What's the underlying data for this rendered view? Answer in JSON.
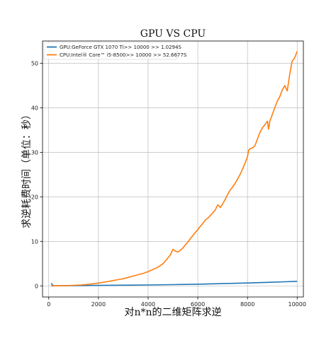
{
  "chart_data": {
    "type": "line",
    "title": "GPU VS CPU",
    "xlabel": "对n*n的二维矩阵求逆",
    "ylabel": "求逆耗费时间（单位：秒）",
    "xlim": [
      -250,
      10250
    ],
    "ylim": [
      -2.5,
      55
    ],
    "xticks": [
      0,
      2000,
      4000,
      6000,
      8000,
      10000
    ],
    "yticks": [
      0,
      10,
      20,
      30,
      40,
      50
    ],
    "grid": true,
    "legend_position": "upper-left",
    "series": [
      {
        "name": "GPU:GeForce GTX 1070 Ti>> 10000 >> 1.0294S",
        "color": "#1f77b4",
        "x": [
          100,
          150,
          200,
          300,
          500,
          1000,
          1500,
          2000,
          3000,
          4000,
          5000,
          6000,
          7000,
          8000,
          9000,
          9500,
          10000
        ],
        "y": [
          0.6,
          0.15,
          0.05,
          0.02,
          0.03,
          0.05,
          0.08,
          0.1,
          0.15,
          0.2,
          0.28,
          0.38,
          0.5,
          0.65,
          0.82,
          0.92,
          1.03
        ]
      },
      {
        "name": "CPU:Intel® Core™ i5-8500>> 10000 >> 52.6677S",
        "color": "#ff7f0e",
        "x": [
          100,
          300,
          500,
          800,
          1000,
          1300,
          1500,
          1700,
          1900,
          2000,
          2200,
          2400,
          2600,
          2800,
          3000,
          3200,
          3400,
          3600,
          3800,
          4000,
          4200,
          4400,
          4500,
          4600,
          4700,
          4800,
          4900,
          5000,
          5100,
          5200,
          5300,
          5400,
          5500,
          5600,
          5700,
          5800,
          5900,
          6000,
          6100,
          6200,
          6300,
          6400,
          6500,
          6600,
          6700,
          6800,
          6850,
          6900,
          7000,
          7100,
          7200,
          7300,
          7400,
          7500,
          7600,
          7700,
          7800,
          7900,
          8000,
          8050,
          8100,
          8200,
          8300,
          8400,
          8500,
          8600,
          8700,
          8800,
          8850,
          8900,
          9000,
          9100,
          9200,
          9300,
          9400,
          9500,
          9600,
          9700,
          9800,
          9900,
          10000
        ],
        "y": [
          0.0,
          0.01,
          0.03,
          0.08,
          0.12,
          0.2,
          0.3,
          0.4,
          0.55,
          0.65,
          0.8,
          1.0,
          1.2,
          1.4,
          1.6,
          1.9,
          2.2,
          2.5,
          2.8,
          3.2,
          3.7,
          4.2,
          4.6,
          5.0,
          5.6,
          6.3,
          7.0,
          8.2,
          7.8,
          7.6,
          8.0,
          8.5,
          9.2,
          9.8,
          10.6,
          11.3,
          12.0,
          12.6,
          13.4,
          14.0,
          14.8,
          15.2,
          15.8,
          16.4,
          17.0,
          18.2,
          18.0,
          17.6,
          18.4,
          19.4,
          20.5,
          21.5,
          22.2,
          23.0,
          24.0,
          25.0,
          26.2,
          27.5,
          29.0,
          30.5,
          30.8,
          31.0,
          31.5,
          33.0,
          34.5,
          35.5,
          36.2,
          37.0,
          35.2,
          37.0,
          38.5,
          40.0,
          41.5,
          42.5,
          44.0,
          45.0,
          43.8,
          47.5,
          50.5,
          51.2,
          52.7
        ]
      }
    ]
  }
}
